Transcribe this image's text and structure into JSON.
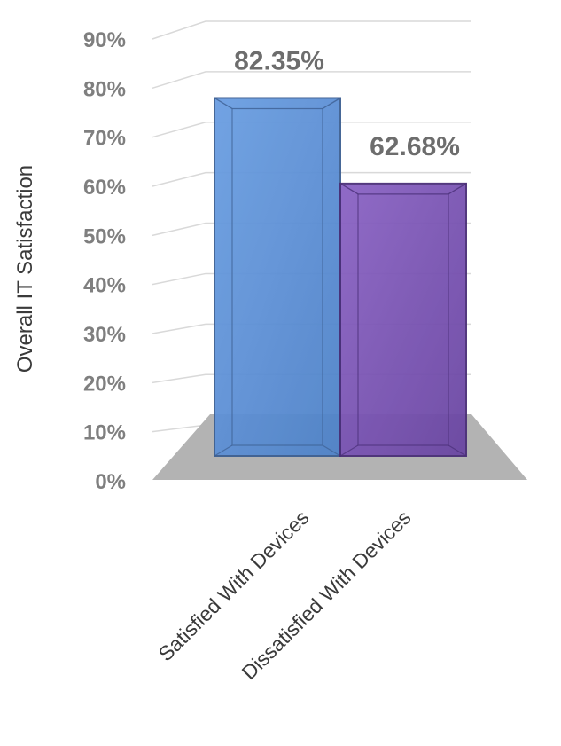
{
  "chart_data": {
    "type": "bar",
    "categories": [
      "Satisfied With Devices",
      "Dissatisfied With Devices"
    ],
    "values": [
      82.35,
      62.68
    ],
    "value_labels": [
      "82.35%",
      "62.68%"
    ],
    "ylabel": "Overall IT Satisfaction",
    "ylim": [
      0,
      90
    ],
    "yticks": [
      "0%",
      "10%",
      "20%",
      "30%",
      "40%",
      "50%",
      "60%",
      "70%",
      "80%",
      "90%"
    ],
    "style": "3d-column",
    "grid": true,
    "colors": {
      "bars": [
        "#5b8fd6",
        "#7a55b2"
      ],
      "bar_edges": [
        "#3d5f92",
        "#4a2f78"
      ],
      "floor": "#b3b3b3",
      "gridlines": "#d9d9d9",
      "tick_text": "#7f7f7f",
      "label_text": "#6d6d6d"
    }
  }
}
